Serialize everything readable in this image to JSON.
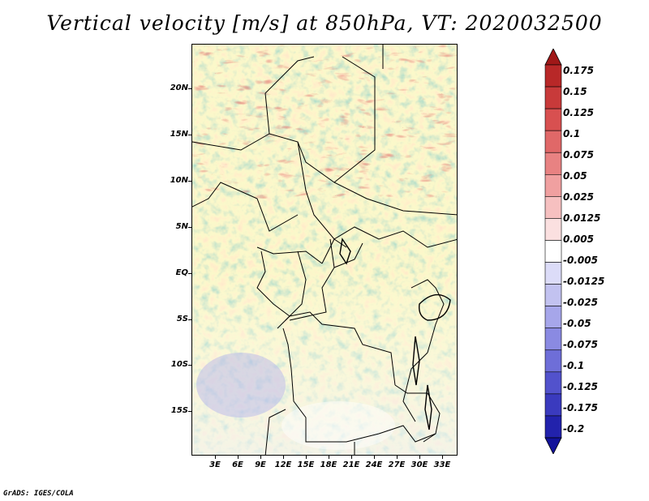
{
  "title": "Vertical velocity [m/s] at 850hPa, VT: 2020032500",
  "map": {
    "variable": "Vertical velocity",
    "units": "m/s",
    "level": "850hPa",
    "valid_time": "2020032500",
    "lat_labels": [
      "20N",
      "15N",
      "10N",
      "5N",
      "EQ",
      "5S",
      "10S",
      "15S"
    ],
    "lon_labels": [
      "3E",
      "6E",
      "9E",
      "12E",
      "15E",
      "18E",
      "21E",
      "24E",
      "27E",
      "30E",
      "33E"
    ],
    "lat_values": [
      20,
      15,
      10,
      5,
      0,
      -5,
      -10,
      -15
    ],
    "lon_values": [
      3,
      6,
      9,
      12,
      15,
      18,
      21,
      24,
      27,
      30,
      33
    ],
    "lat_range": [
      -20,
      24.5
    ],
    "lon_range": [
      0,
      35
    ]
  },
  "colorbar": {
    "labels": [
      "0.175",
      "0.15",
      "0.125",
      "0.1",
      "0.075",
      "0.05",
      "0.025",
      "0.0125",
      "0.005",
      "-0.005",
      "-0.0125",
      "-0.025",
      "-0.05",
      "-0.075",
      "-0.1",
      "-0.125",
      "-0.175",
      "-0.2"
    ],
    "colors": [
      "#a01818",
      "#b82828",
      "#c83a3a",
      "#d85050",
      "#e06868",
      "#e88282",
      "#f0a0a0",
      "#f6c0c0",
      "#fbe0e0",
      "#ffffff",
      "#dcdcf8",
      "#c2c2f0",
      "#a6a6ea",
      "#8a8ae2",
      "#6e6ed8",
      "#5252cc",
      "#3a3abe",
      "#2222ac",
      "#12129a"
    ]
  },
  "footer": "GrADS: IGES/COLA"
}
